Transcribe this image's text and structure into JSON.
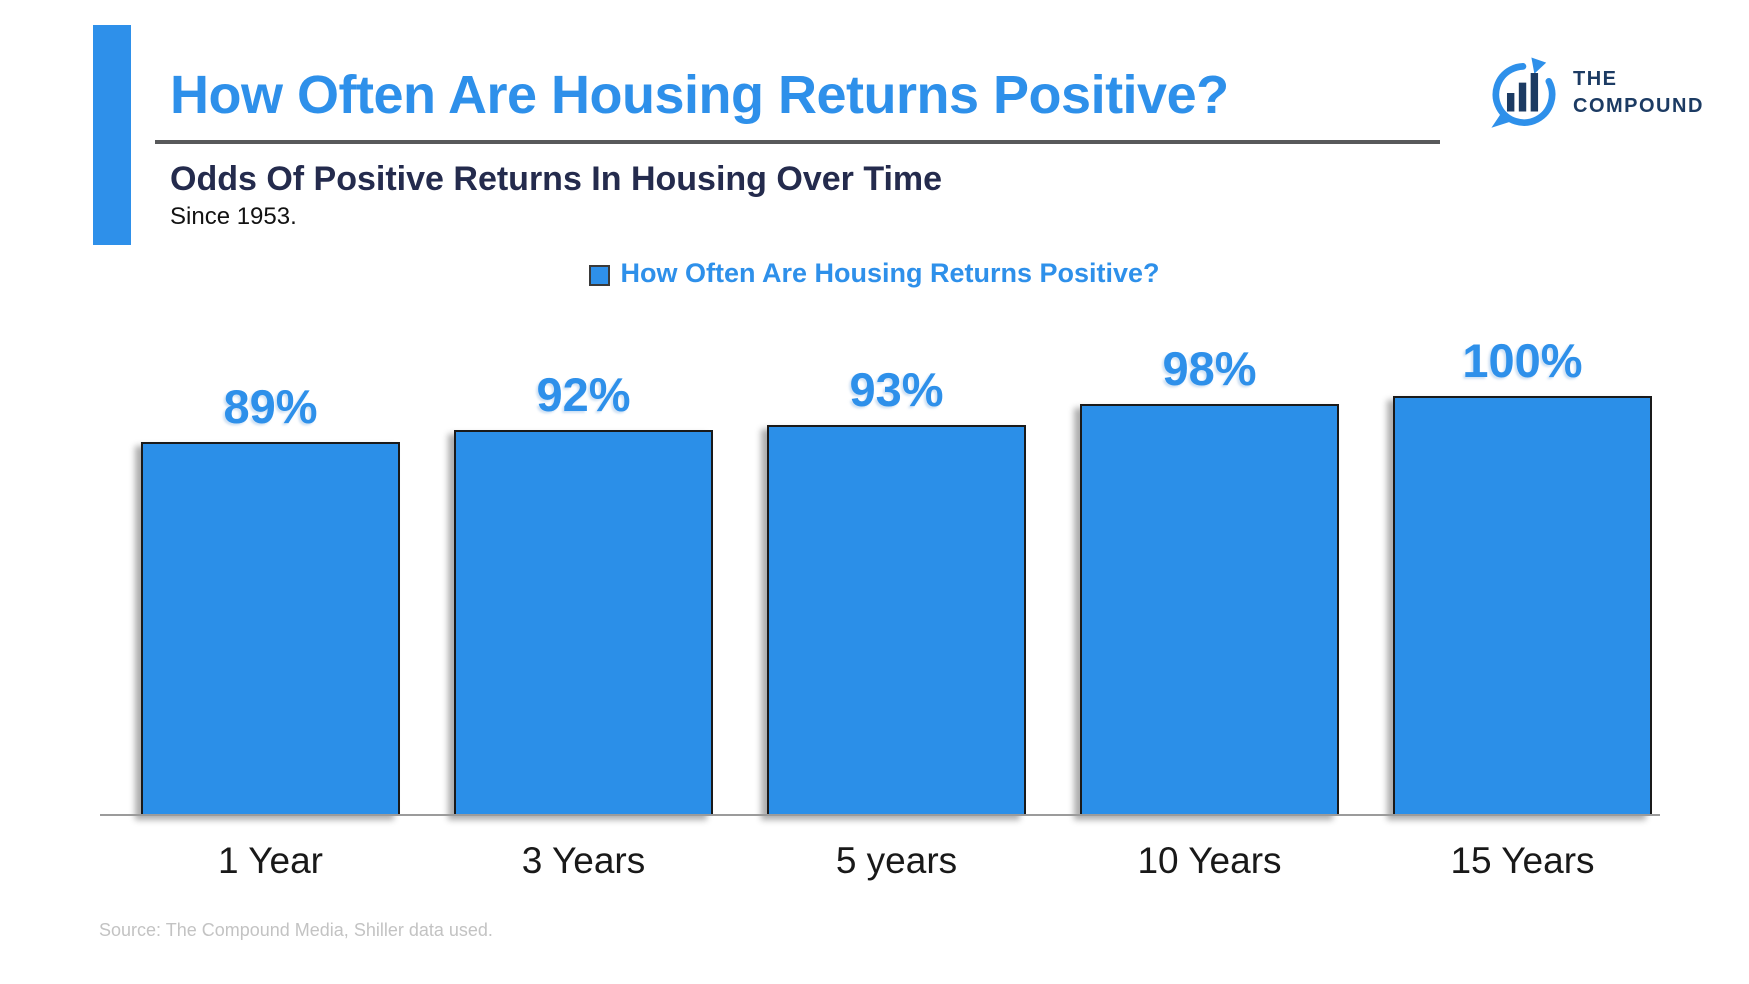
{
  "header": {
    "title": "How Often Are Housing Returns Positive?",
    "subtitle": "Odds Of Positive Returns In Housing Over Time",
    "since": "Since 1953."
  },
  "logo": {
    "icon": "compound-speech-bubble-bar-chart-icon",
    "line1": "THE",
    "line2": "COMPOUND"
  },
  "legend": {
    "label": "How Often Are Housing Returns Positive?"
  },
  "source": "Source: The Compound Media, Shiller data used.",
  "colors": {
    "brand_blue": "#2E90EA",
    "bar_fill": "#2B8FE8",
    "bar_border": "#1A1A1A",
    "subtitle_navy": "#242B4D",
    "logo_navy": "#1C3B63",
    "underline_gray": "#58595B",
    "axis_line_gray": "#9B9B9B",
    "source_gray": "#C3C3C3"
  },
  "chart_data": {
    "type": "bar",
    "title": "How Often Are Housing Returns Positive?",
    "subtitle": "Odds Of Positive Returns In Housing Over Time",
    "categories": [
      "1 Year",
      "3 Years",
      "5 years",
      "10 Years",
      "15 Years"
    ],
    "values": [
      89,
      92,
      93,
      98,
      100
    ],
    "data_labels": [
      "89%",
      "92%",
      "93%",
      "98%",
      "100%"
    ],
    "xlabel": "",
    "ylabel": "",
    "ylim": [
      0,
      105
    ],
    "grid": false,
    "legend_position": "top-center",
    "bar_color": "#2B8FE8"
  }
}
